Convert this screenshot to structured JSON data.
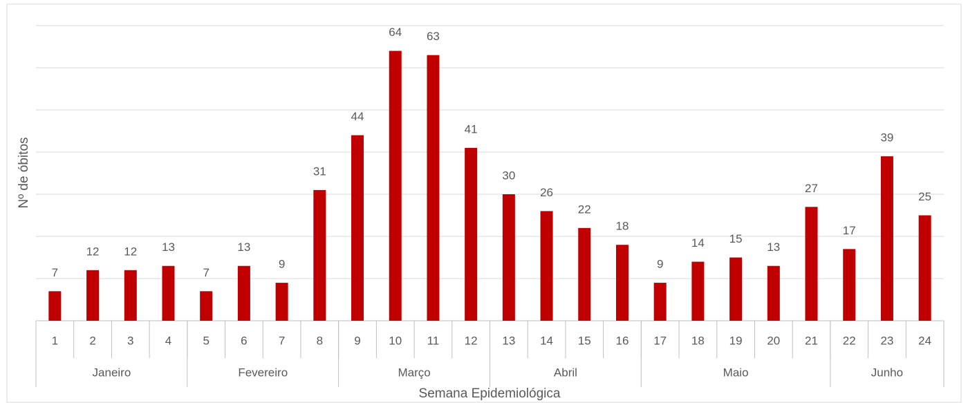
{
  "chart_data": {
    "type": "bar",
    "y_label": "Nº de óbitos",
    "x_label": "Semana Epidemiológica",
    "categories": [
      "1",
      "2",
      "3",
      "4",
      "5",
      "6",
      "7",
      "8",
      "9",
      "10",
      "11",
      "12",
      "13",
      "14",
      "15",
      "16",
      "17",
      "18",
      "19",
      "20",
      "21",
      "22",
      "23",
      "24"
    ],
    "values": [
      7,
      12,
      12,
      13,
      7,
      13,
      9,
      31,
      44,
      64,
      63,
      41,
      30,
      26,
      22,
      18,
      9,
      14,
      15,
      13,
      27,
      17,
      39,
      25
    ],
    "groups": [
      {
        "label": "Janeiro",
        "count": 4
      },
      {
        "label": "Fevereiro",
        "count": 4
      },
      {
        "label": "Março",
        "count": 4
      },
      {
        "label": "Abril",
        "count": 4
      },
      {
        "label": "Maio",
        "count": 5
      },
      {
        "label": "Junho",
        "count": 3
      }
    ],
    "color": "#c00000",
    "ylim": [
      0,
      70
    ],
    "yticks": [
      0,
      10,
      20,
      30,
      40,
      50,
      60,
      70
    ],
    "grid": true
  }
}
